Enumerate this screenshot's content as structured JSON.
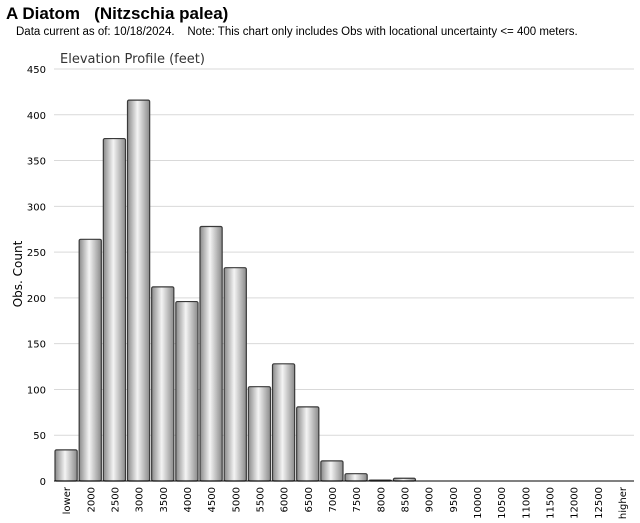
{
  "header": {
    "title": "A Diatom   (Nitzschia palea)",
    "subtitle": "Data current as of: 10/18/2024.    Note: This chart only includes Obs with locational uncertainty <= 400 meters."
  },
  "chart_data": {
    "type": "bar",
    "title": "Elevation Profile (feet)",
    "xlabel": "",
    "ylabel": "Obs. Count",
    "ylim": [
      0,
      450
    ],
    "yticks": [
      0,
      50,
      100,
      150,
      200,
      250,
      300,
      350,
      400,
      450
    ],
    "grid": true,
    "categories": [
      "lower",
      "2000",
      "2500",
      "3000",
      "3500",
      "4000",
      "4500",
      "5000",
      "5500",
      "6000",
      "6500",
      "7000",
      "7500",
      "8000",
      "8500",
      "9000",
      "9500",
      "10000",
      "10500",
      "11000",
      "11500",
      "12000",
      "12500",
      "higher"
    ],
    "values": [
      34,
      264,
      374,
      416,
      212,
      196,
      278,
      233,
      103,
      128,
      81,
      22,
      8,
      1,
      3,
      0,
      0,
      0,
      0,
      0,
      0,
      0,
      0,
      0
    ],
    "colors": {
      "bar_light": "#f4f4f4",
      "bar_dark": "#8a8a8a",
      "bar_stroke": "#3a3a3a",
      "grid": "#d9d9d9",
      "axis": "#000000"
    }
  }
}
